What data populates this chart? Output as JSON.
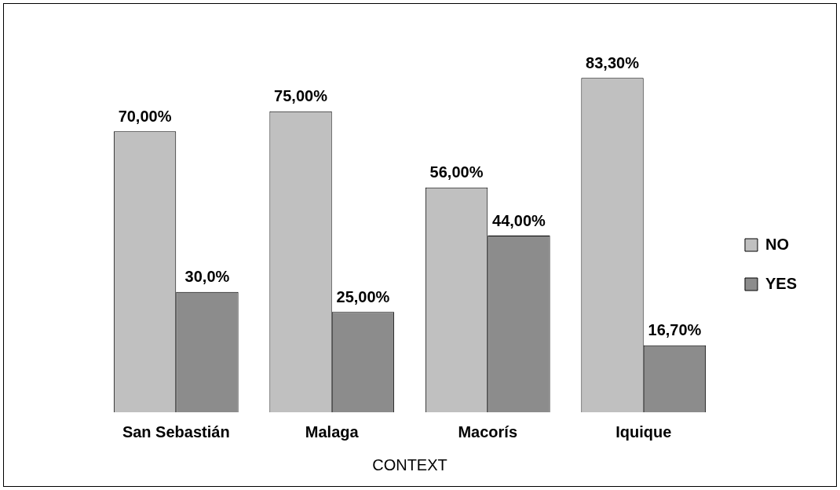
{
  "chart_data": {
    "type": "bar",
    "xlabel": "CONTEXT",
    "categories": [
      "San Sebastián",
      "Malaga",
      "Macorís",
      "Iquique"
    ],
    "series": [
      {
        "name": "NO",
        "color": "#c0c0c0",
        "values": [
          70,
          75,
          56,
          83.3
        ],
        "value_labels": [
          "70,00%",
          "75,00%",
          "56,00%",
          "83,30%"
        ]
      },
      {
        "name": "YES",
        "color": "#8c8c8c",
        "values": [
          30,
          25,
          44,
          16.7
        ],
        "value_labels": [
          "30,0%",
          "25,00%",
          "44,00%",
          "16,70%"
        ]
      }
    ],
    "legend": "right",
    "grid": false
  }
}
